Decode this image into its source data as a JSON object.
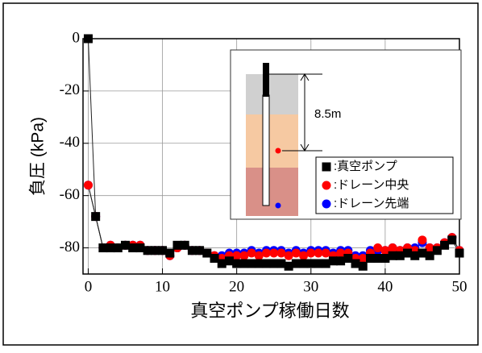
{
  "chart_data": {
    "type": "line",
    "xlabel": "真空ポンプ稼働日数",
    "ylabel": "負圧 (kPa)",
    "annotation": "8.5m",
    "x": [
      0,
      1,
      2,
      3,
      4,
      5,
      6,
      7,
      8,
      9,
      10,
      11,
      12,
      13,
      14,
      15,
      16,
      17,
      18,
      19,
      20,
      21,
      22,
      23,
      24,
      25,
      26,
      27,
      28,
      29,
      30,
      31,
      32,
      33,
      34,
      35,
      36,
      37,
      38,
      39,
      40,
      41,
      42,
      43,
      44,
      45,
      46,
      47,
      48,
      49,
      50
    ],
    "series": [
      {
        "name": ":真空ポンプ",
        "color": "#000000",
        "marker": "square",
        "values": [
          0,
          -68,
          -80,
          -80,
          -80,
          -79,
          -80,
          -80,
          -81,
          -81,
          -81,
          -82,
          -79,
          -79,
          -81,
          -81,
          -82,
          -84,
          -86,
          -85,
          -86,
          -86,
          -86,
          -86,
          -86,
          -86,
          -86,
          -87,
          -86,
          -86,
          -86,
          -86,
          -86,
          -85,
          -85,
          -84,
          -86,
          -87,
          -84,
          -84,
          -84,
          -83,
          -83,
          -82,
          -83,
          -82,
          -83,
          -81,
          -79,
          -77,
          -82
        ]
      },
      {
        "name": ":ドレーン中央",
        "color": "#ff0000",
        "marker": "circle",
        "values": [
          -56,
          -68,
          -80,
          -79,
          -80,
          -79,
          -79,
          -79,
          -81,
          -81,
          -81,
          -83,
          -80,
          -79,
          -81,
          -81,
          -82,
          -83,
          -84,
          -83,
          -83,
          -83,
          -82,
          -83,
          -82,
          -82,
          -82,
          -83,
          -82,
          -83,
          -82,
          -82,
          -82,
          -83,
          -82,
          -82,
          -84,
          -84,
          -82,
          -80,
          -81,
          -80,
          -81,
          -80,
          -81,
          -77,
          -80,
          -80,
          -78,
          -76,
          -81
        ]
      },
      {
        "name": ":ドレーン先端",
        "color": "#0000ff",
        "marker": "circle",
        "values": [
          -56,
          -68,
          -80,
          -79,
          -80,
          -79,
          -79,
          -79,
          -81,
          -81,
          -81,
          -83,
          -80,
          -79,
          -81,
          -81,
          -82,
          -83,
          -83,
          -82,
          -82,
          -82,
          -81,
          -82,
          -81,
          -81,
          -81,
          -82,
          -81,
          -82,
          -81,
          -81,
          -81,
          -82,
          -81,
          -81,
          -83,
          -83,
          -81,
          -81,
          -81,
          -80,
          -81,
          -80,
          -80,
          -78,
          -80,
          -80,
          -78,
          -76,
          -81
        ]
      }
    ],
    "xlim": [
      -0.7,
      50
    ],
    "ylim": [
      -90,
      0
    ],
    "xticks": [
      0,
      10,
      20,
      30,
      40,
      50
    ],
    "yticks": [
      0,
      -20,
      -40,
      -60,
      -80
    ],
    "grid": true,
    "legend": "inset"
  }
}
